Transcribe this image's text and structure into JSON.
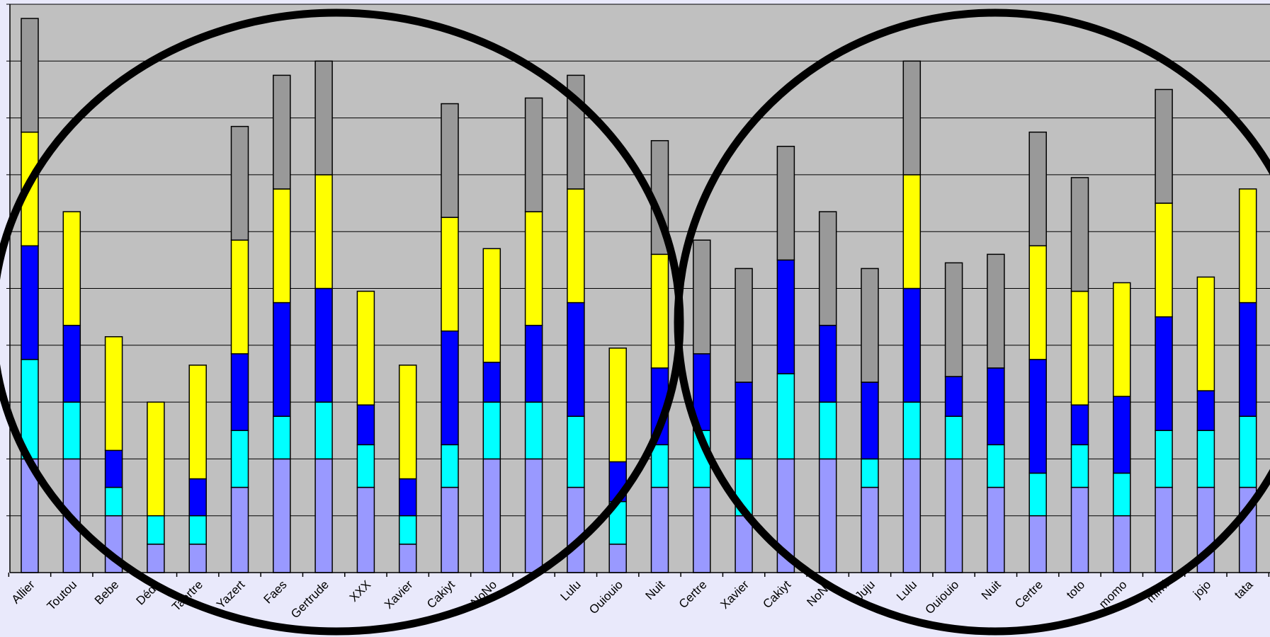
{
  "chart_data": {
    "type": "bar",
    "stacked": true,
    "title": "",
    "xlabel": "",
    "ylabel": "",
    "ylim": [
      0,
      10
    ],
    "grid": true,
    "legend": "none",
    "categories": [
      "Allier",
      "Toutou",
      "Bebe",
      "Dédé",
      "Taertre",
      "Yazert",
      "Faes",
      "Gertrude",
      "XXX",
      "Xavier",
      "Cakiyt",
      "NoNo",
      "",
      "Lulu",
      "Ouiouio",
      "Nuit",
      "Certre",
      "Xavier",
      "Cakiyt",
      "NoNo",
      "Juju",
      "Lulu",
      "Ouiouio",
      "Nuit",
      "Certre",
      "toto",
      "momo",
      "mimi",
      "jojo",
      "tata"
    ],
    "series": [
      {
        "color": "#9999ff",
        "values": [
          2,
          2,
          1,
          0.5,
          0.5,
          1.5,
          2,
          2,
          1.5,
          0.5,
          1.5,
          2,
          2,
          1.5,
          0.5,
          1.5,
          1.5,
          1,
          2,
          2,
          1.5,
          2,
          2,
          1.5,
          1,
          1.5,
          1,
          1.5,
          1.5,
          1.5
        ]
      },
      {
        "color": "#00ffff",
        "values": [
          1.75,
          1,
          0.5,
          0.5,
          0.5,
          1,
          0.75,
          1,
          0.75,
          0.5,
          0.75,
          1,
          1,
          1.25,
          0.75,
          0.75,
          1,
          1,
          1.5,
          1,
          0.5,
          1,
          0.75,
          0.75,
          0.75,
          0.75,
          0.75,
          1,
          1,
          1.25
        ]
      },
      {
        "color": "#0000ff",
        "values": [
          2,
          1.35,
          0.65,
          0,
          0.65,
          1.35,
          2,
          2,
          0.7,
          0.65,
          2,
          0.7,
          1.35,
          2,
          0.7,
          1.35,
          1.35,
          1.35,
          2,
          1.35,
          1.35,
          2,
          0.7,
          1.35,
          2,
          0.7,
          1.35,
          2,
          0.7,
          2
        ]
      },
      {
        "color": "#ffff00",
        "values": [
          2,
          2,
          2,
          2,
          2,
          2,
          2,
          2,
          2,
          2,
          2,
          2,
          2,
          2,
          2,
          2,
          0,
          0,
          0,
          0,
          0,
          2,
          0,
          0,
          2,
          2,
          2,
          2,
          2,
          2
        ]
      },
      {
        "color": "#999999",
        "values": [
          2,
          0,
          0,
          0,
          0,
          2,
          2,
          2,
          0,
          0,
          2,
          0,
          2,
          2,
          0,
          2,
          2,
          2,
          2,
          2,
          2,
          2,
          2,
          2,
          2,
          2,
          0,
          2,
          0,
          0
        ]
      }
    ]
  }
}
